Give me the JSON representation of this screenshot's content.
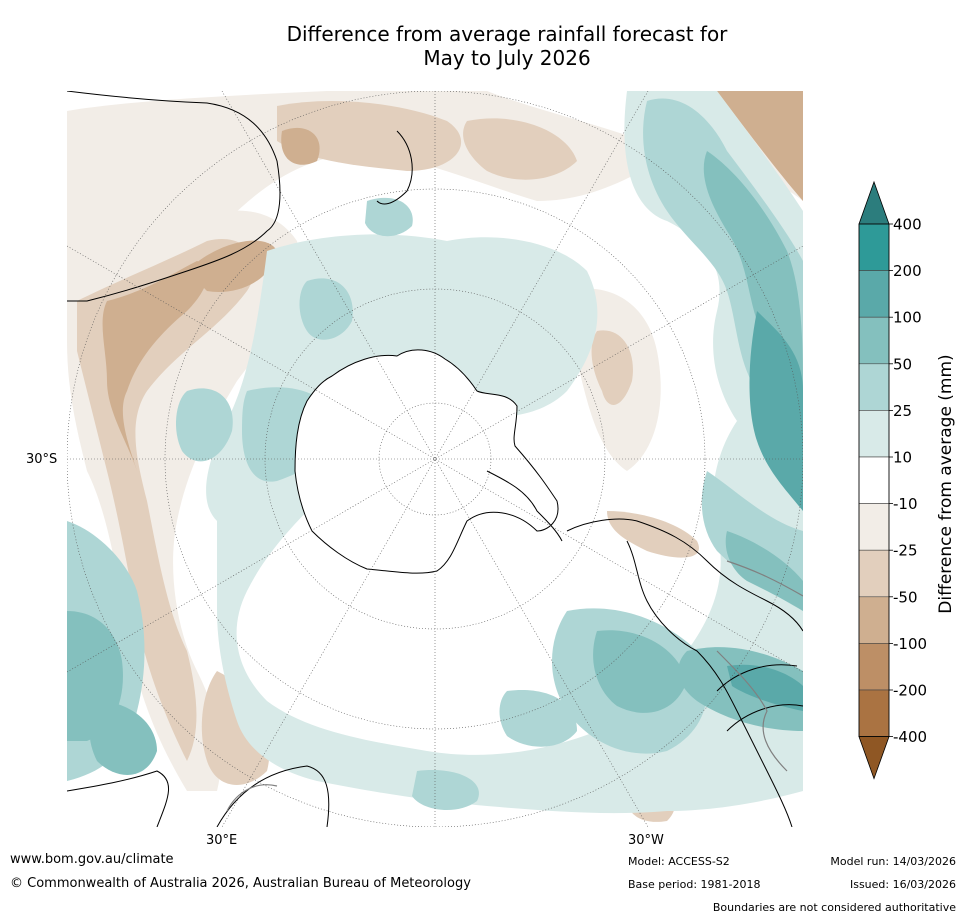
{
  "title_line1": "Difference from average rainfall forecast for",
  "title_line2": "May to July 2026",
  "lat_label": "30°S",
  "lon_east_label": "30°E",
  "lon_west_label": "30°W",
  "colorbar": {
    "title": "Difference from average (mm)",
    "ticks": [
      "400",
      "200",
      "100",
      "50",
      "25",
      "10",
      "-10",
      "-25",
      "-50",
      "-100",
      "-200",
      "-400"
    ],
    "colors": [
      "#2c7d7d",
      "#2e9a98",
      "#5aa9a9",
      "#84c0be",
      "#aed6d5",
      "#d8eae8",
      "#ffffff",
      "#f2ede7",
      "#e2cfbd",
      "#cfaf90",
      "#bd8f66",
      "#aa7342",
      "#8f5724"
    ]
  },
  "footer": {
    "url": "www.bom.gov.au/climate",
    "copyright": "© Commonwealth of Australia 2026, Australian Bureau of Meteorology",
    "model": "Model: ACCESS-S2",
    "base_period": "Base period: 1981-2018",
    "model_run": "Model run: 14/03/2026",
    "issued": "Issued: 16/03/2026",
    "disclaimer": "Boundaries are not considered authoritative"
  }
}
